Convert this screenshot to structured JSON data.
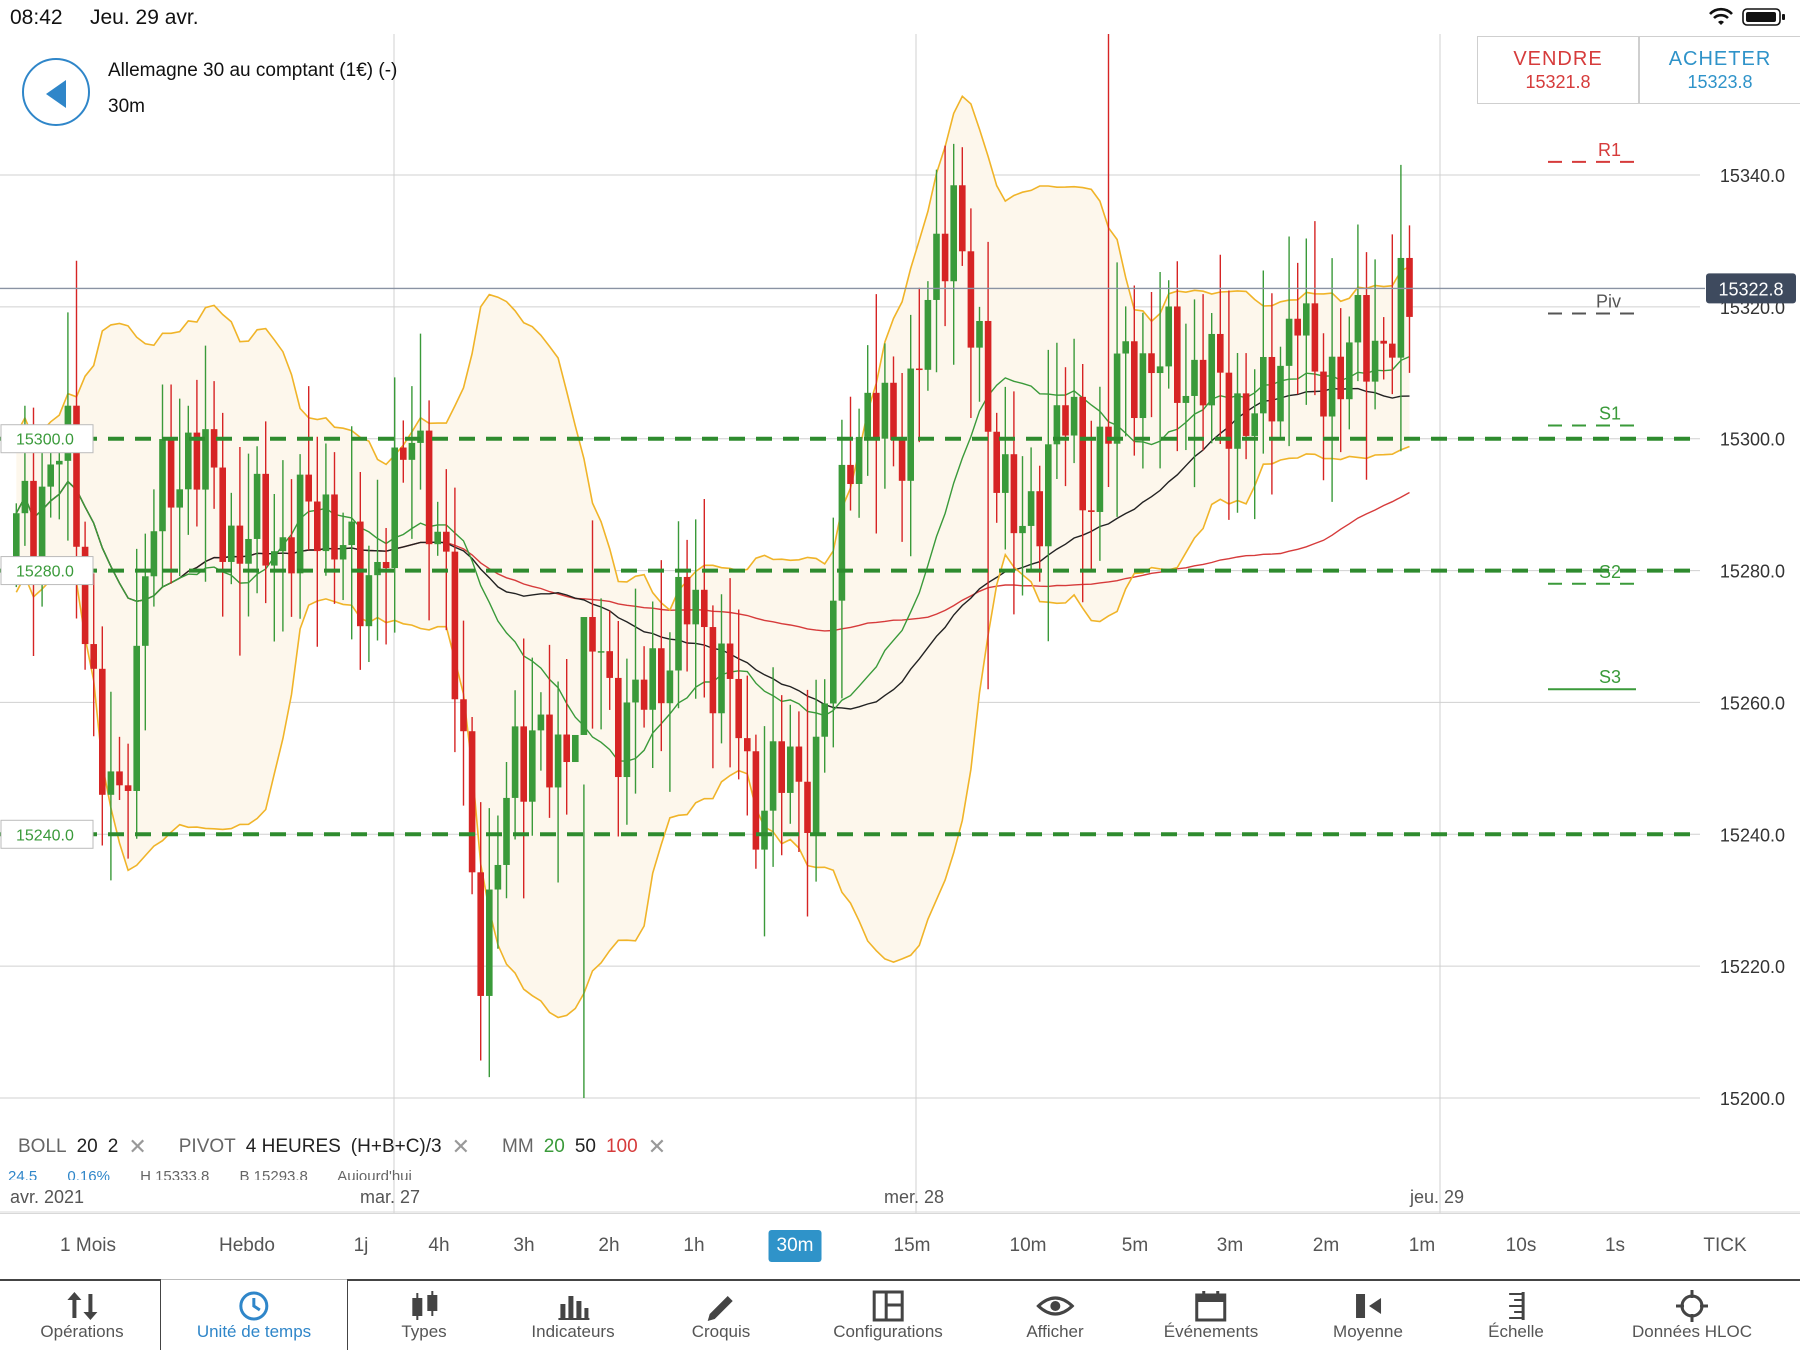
{
  "status_bar": {
    "time": "08:42",
    "date": "Jeu. 29 avr."
  },
  "header": {
    "instrument": "Allemagne 30 au comptant (1€) (-)",
    "timeframe": "30m",
    "sell": {
      "label": "VENDRE",
      "price": "15321.8"
    },
    "buy": {
      "label": "ACHETER",
      "price": "15323.8"
    }
  },
  "chart_data": {
    "type": "candlestick",
    "ylim": [
      15185,
      15370
    ],
    "y_ticks": [
      "15200.0",
      "15220.0",
      "15240.0",
      "15260.0",
      "15280.0",
      "15300.0",
      "15320.0",
      "15340.0"
    ],
    "current_price": "15322.8",
    "x_date_labels": [
      "avr. 2021",
      "mar. 27",
      "mer. 28",
      "jeu. 29"
    ],
    "horizontal_levels": [
      "15300.0",
      "15280.0",
      "15240.0"
    ],
    "pivot_labels": {
      "R1": "R1",
      "Piv": "Piv",
      "S1": "S1",
      "S2": "S2",
      "S3": "S3"
    },
    "pivot_values": {
      "R1": 15342,
      "Piv": 15319,
      "S1": 15302,
      "S2": 15278,
      "S3": 15262
    },
    "colors": {
      "up": "#3a9a3a",
      "down": "#d62424",
      "boll": "#f0b429",
      "mm20": "#3a9a3a",
      "mm50": "#222222",
      "mm100": "#d63b3b",
      "levels": "#2e8b2e"
    }
  },
  "legend": {
    "boll": {
      "name": "BOLL",
      "p1": "20",
      "p2": "2"
    },
    "pivot": {
      "name": "PIVOT",
      "p1": "4 HEURES",
      "p2": "(H+B+C)/3"
    },
    "mm": {
      "name": "MM",
      "p1": "20",
      "p2": "50",
      "p3": "100"
    },
    "row2": [
      "24.5",
      "0.16%",
      "H 15333.8",
      "B 15293.8",
      "Aujourd'hui"
    ]
  },
  "timeframes": [
    {
      "label": "1 Mois"
    },
    {
      "label": "Hebdo"
    },
    {
      "label": "1j"
    },
    {
      "label": "4h"
    },
    {
      "label": "3h"
    },
    {
      "label": "2h"
    },
    {
      "label": "1h"
    },
    {
      "label": "30m"
    },
    {
      "label": "15m"
    },
    {
      "label": "10m"
    },
    {
      "label": "5m"
    },
    {
      "label": "3m"
    },
    {
      "label": "2m"
    },
    {
      "label": "1m"
    },
    {
      "label": "10s"
    },
    {
      "label": "1s"
    },
    {
      "label": "TICK"
    }
  ],
  "toolbar": [
    {
      "label": "Opérations",
      "icon": "sort-arrows-icon"
    },
    {
      "label": "Unité de temps",
      "icon": "clock-icon"
    },
    {
      "label": "Types",
      "icon": "candles-icon"
    },
    {
      "label": "Indicateurs",
      "icon": "bar-chart-icon"
    },
    {
      "label": "Croquis",
      "icon": "pencil-icon"
    },
    {
      "label": "Configurations",
      "icon": "layout-icon"
    },
    {
      "label": "Afficher",
      "icon": "eye-icon"
    },
    {
      "label": "Événements",
      "icon": "calendar-icon"
    },
    {
      "label": "Moyenne",
      "icon": "moving-average-icon"
    },
    {
      "label": "Échelle",
      "icon": "scale-icon"
    },
    {
      "label": "Données HLOC",
      "icon": "crosshair-icon"
    }
  ]
}
